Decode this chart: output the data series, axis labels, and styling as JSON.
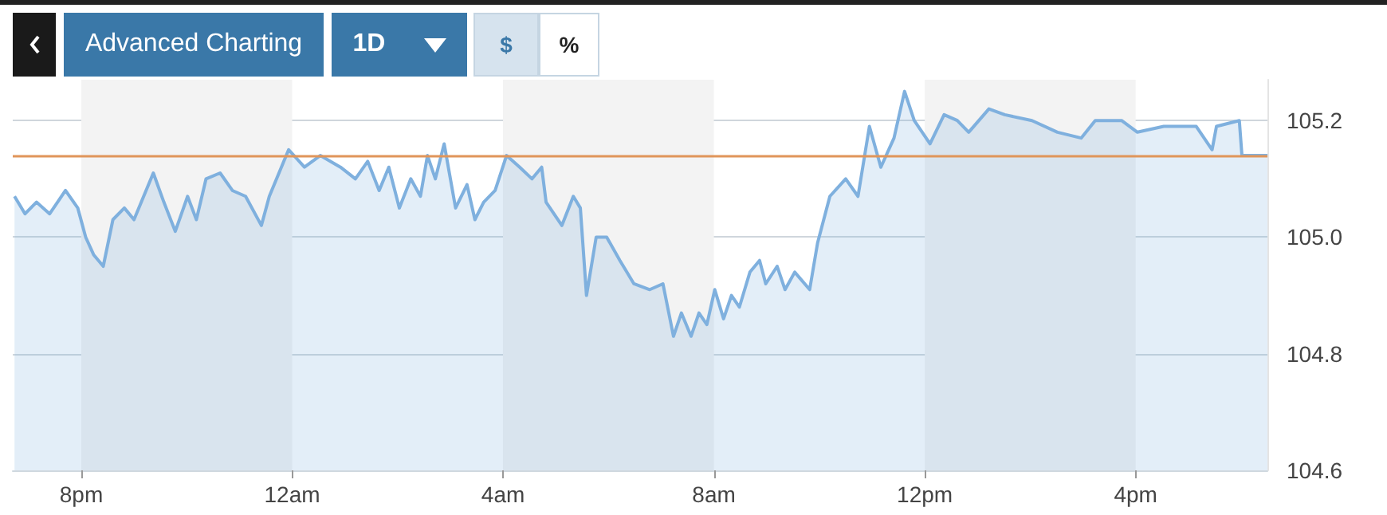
{
  "chart_data": {
    "type": "area",
    "annotations": [
      "Advanced Charting",
      "1D",
      "$",
      "%"
    ],
    "x": [
      "--01-01T18:44",
      "--01-01T18:56",
      "--01-01T19:09",
      "--01-01T19:24",
      "--01-01T19:42",
      "--01-01T19:56",
      "--01-01T20:05",
      "--01-01T20:14",
      "--01-01T20:25",
      "--01-01T20:36",
      "--01-01T20:49",
      "--01-01T21:00",
      "--01-01T21:22",
      "--01-01T21:34",
      "--01-01T21:47",
      "--01-01T22:01",
      "--01-01T22:11",
      "--01-01T22:22",
      "--01-01T22:38",
      "--01-01T22:52",
      "--01-01T23:07",
      "--01-01T23:25",
      "--01-01T23:34",
      "--01-01T23:56",
      "--01-02T00:14",
      "--01-02T00:32",
      "--01-02T00:55",
      "--01-02T01:12",
      "--01-02T01:26",
      "--01-02T01:39",
      "--01-02T01:50",
      "--01-02T02:02",
      "--01-02T02:15",
      "--01-02T02:26",
      "--01-02T02:34",
      "--01-02T02:43",
      "--01-02T02:53",
      "--01-02T03:06",
      "--01-02T03:19",
      "--01-02T03:28",
      "--01-02T03:38",
      "--01-02T03:51",
      "--01-02T04:04",
      "--01-02T04:19",
      "--01-02T04:33",
      "--01-02T04:44",
      "--01-02T04:49",
      "--01-02T05:07",
      "--01-02T05:20",
      "--01-02T05:28",
      "--01-02T05:35",
      "--01-02T05:46",
      "--01-02T05:58",
      "--01-02T06:13",
      "--01-02T06:29",
      "--01-02T06:47",
      "--01-02T07:02",
      "--01-02T07:14",
      "--01-02T07:23",
      "--01-02T07:34",
      "--01-02T07:43",
      "--01-02T07:52",
      "--01-02T08:01",
      "--01-02T08:11",
      "--01-02T08:20",
      "--01-02T08:29",
      "--01-02T08:41",
      "--01-02T08:52",
      "--01-02T08:59",
      "--01-02T09:12",
      "--01-02T09:21",
      "--01-02T09:32",
      "--01-02T09:49",
      "--01-02T09:58",
      "--01-02T10:12",
      "--01-02T10:30",
      "--01-02T10:44",
      "--01-02T10:57",
      "--01-02T11:10",
      "--01-02T11:25",
      "--01-02T11:37",
      "--01-02T11:48",
      "--01-02T12:06",
      "--01-02T12:22",
      "--01-02T12:37",
      "--01-02T12:50",
      "--01-02T13:13",
      "--01-02T13:31",
      "--01-02T14:02",
      "--01-02T14:31",
      "--01-02T14:58",
      "--01-02T15:14",
      "--01-02T15:44",
      "--01-02T16:02",
      "--01-02T16:32",
      "--01-02T17:09",
      "--01-02T17:27",
      "--01-02T17:32",
      "--01-02T17:58",
      "--01-02T18:01",
      "--01-02T18:30"
    ],
    "series": [
      {
        "color": "#7fb0de",
        "values": [
          105.07,
          105.04,
          105.06,
          105.04,
          105.08,
          105.05,
          105.0,
          104.97,
          104.95,
          105.03,
          105.05,
          105.03,
          105.11,
          105.06,
          105.01,
          105.07,
          105.03,
          105.1,
          105.11,
          105.08,
          105.07,
          105.02,
          105.07,
          105.15,
          105.12,
          105.14,
          105.12,
          105.1,
          105.13,
          105.08,
          105.12,
          105.05,
          105.1,
          105.07,
          105.14,
          105.1,
          105.16,
          105.05,
          105.09,
          105.03,
          105.06,
          105.08,
          105.14,
          105.12,
          105.1,
          105.12,
          105.06,
          105.02,
          105.07,
          105.05,
          104.9,
          105.0,
          105.0,
          104.96,
          104.92,
          104.91,
          104.92,
          104.83,
          104.87,
          104.83,
          104.87,
          104.85,
          104.91,
          104.86,
          104.9,
          104.88,
          104.94,
          104.96,
          104.92,
          104.95,
          104.91,
          104.94,
          104.91,
          104.99,
          105.07,
          105.1,
          105.07,
          105.19,
          105.12,
          105.17,
          105.25,
          105.2,
          105.16,
          105.21,
          105.2,
          105.18,
          105.22,
          105.21,
          105.2,
          105.18,
          105.17,
          105.2,
          105.2,
          105.18,
          105.19,
          105.19,
          105.15,
          105.19,
          105.2,
          105.14,
          105.14
        ]
      }
    ],
    "xlim": [
      "--01-01T18:42",
      "--01-02T18:30"
    ],
    "xticks": [
      {
        "value": "--01-01T20:00",
        "label": "8pm"
      },
      {
        "value": "--01-02T00:00",
        "label": "12am"
      },
      {
        "value": "--01-02T04:00",
        "label": "4am"
      },
      {
        "value": "--01-02T08:00",
        "label": "8am"
      },
      {
        "value": "--01-02T12:00",
        "label": "12pm"
      },
      {
        "value": "--01-02T16:00",
        "label": "4pm"
      }
    ],
    "ylim": [
      104.6,
      105.27
    ],
    "yticks": [
      104.6,
      104.8,
      {
        "value": 105,
        "label": "105.0"
      },
      105.2
    ],
    "grid": "y",
    "marker": "none",
    "ref_lines": [
      {
        "axis": "y",
        "value": 105.14,
        "color": "#e0955a"
      }
    ],
    "bands": [
      {
        "axis": "x",
        "from": "--01-01T20:00",
        "to": "--01-02T00:00",
        "color": "#f3f3f3"
      },
      {
        "axis": "x",
        "from": "--01-02T04:00",
        "to": "--01-02T08:00",
        "color": "#f3f3f3"
      },
      {
        "axis": "x",
        "from": "--01-02T12:00",
        "to": "--01-02T16:00",
        "color": "#f3f3f3"
      }
    ]
  }
}
